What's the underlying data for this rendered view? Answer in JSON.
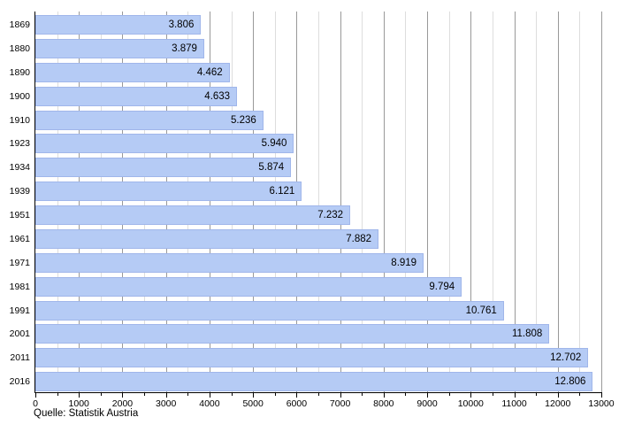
{
  "chart_data": {
    "type": "bar",
    "orientation": "horizontal",
    "title": "",
    "xlabel": "",
    "ylabel": "",
    "categories": [
      "1869",
      "1880",
      "1890",
      "1900",
      "1910",
      "1923",
      "1934",
      "1939",
      "1951",
      "1961",
      "1971",
      "1981",
      "1991",
      "2001",
      "2011",
      "2016"
    ],
    "values": [
      3806,
      3879,
      4462,
      4633,
      5236,
      5940,
      5874,
      6121,
      7232,
      7882,
      8919,
      9794,
      10761,
      11808,
      12702,
      12806
    ],
    "value_labels": [
      "3.806",
      "3.879",
      "4.462",
      "4.633",
      "5.236",
      "5.940",
      "5.874",
      "6.121",
      "7.232",
      "7.882",
      "8.919",
      "9.794",
      "10.761",
      "11.808",
      "12.702",
      "12.806"
    ],
    "xlim": [
      0,
      13000
    ],
    "x_major_tick": 1000,
    "x_minor_tick": 500,
    "x_tick_labels": [
      "0",
      "1000",
      "2000",
      "3000",
      "4000",
      "5000",
      "6000",
      "7000",
      "8000",
      "9000",
      "10000",
      "11000",
      "12000",
      "13000"
    ],
    "grid": "on",
    "legend": "none",
    "source": "Quelle: Statistik Austria",
    "colors": {
      "bar_fill": "#b5cbf5",
      "bar_border": "#a0b6ea",
      "grid_major": "#999999",
      "grid_minor": "#dddddd",
      "axis": "#000000",
      "text": "#000000",
      "background": "#ffffff"
    }
  }
}
